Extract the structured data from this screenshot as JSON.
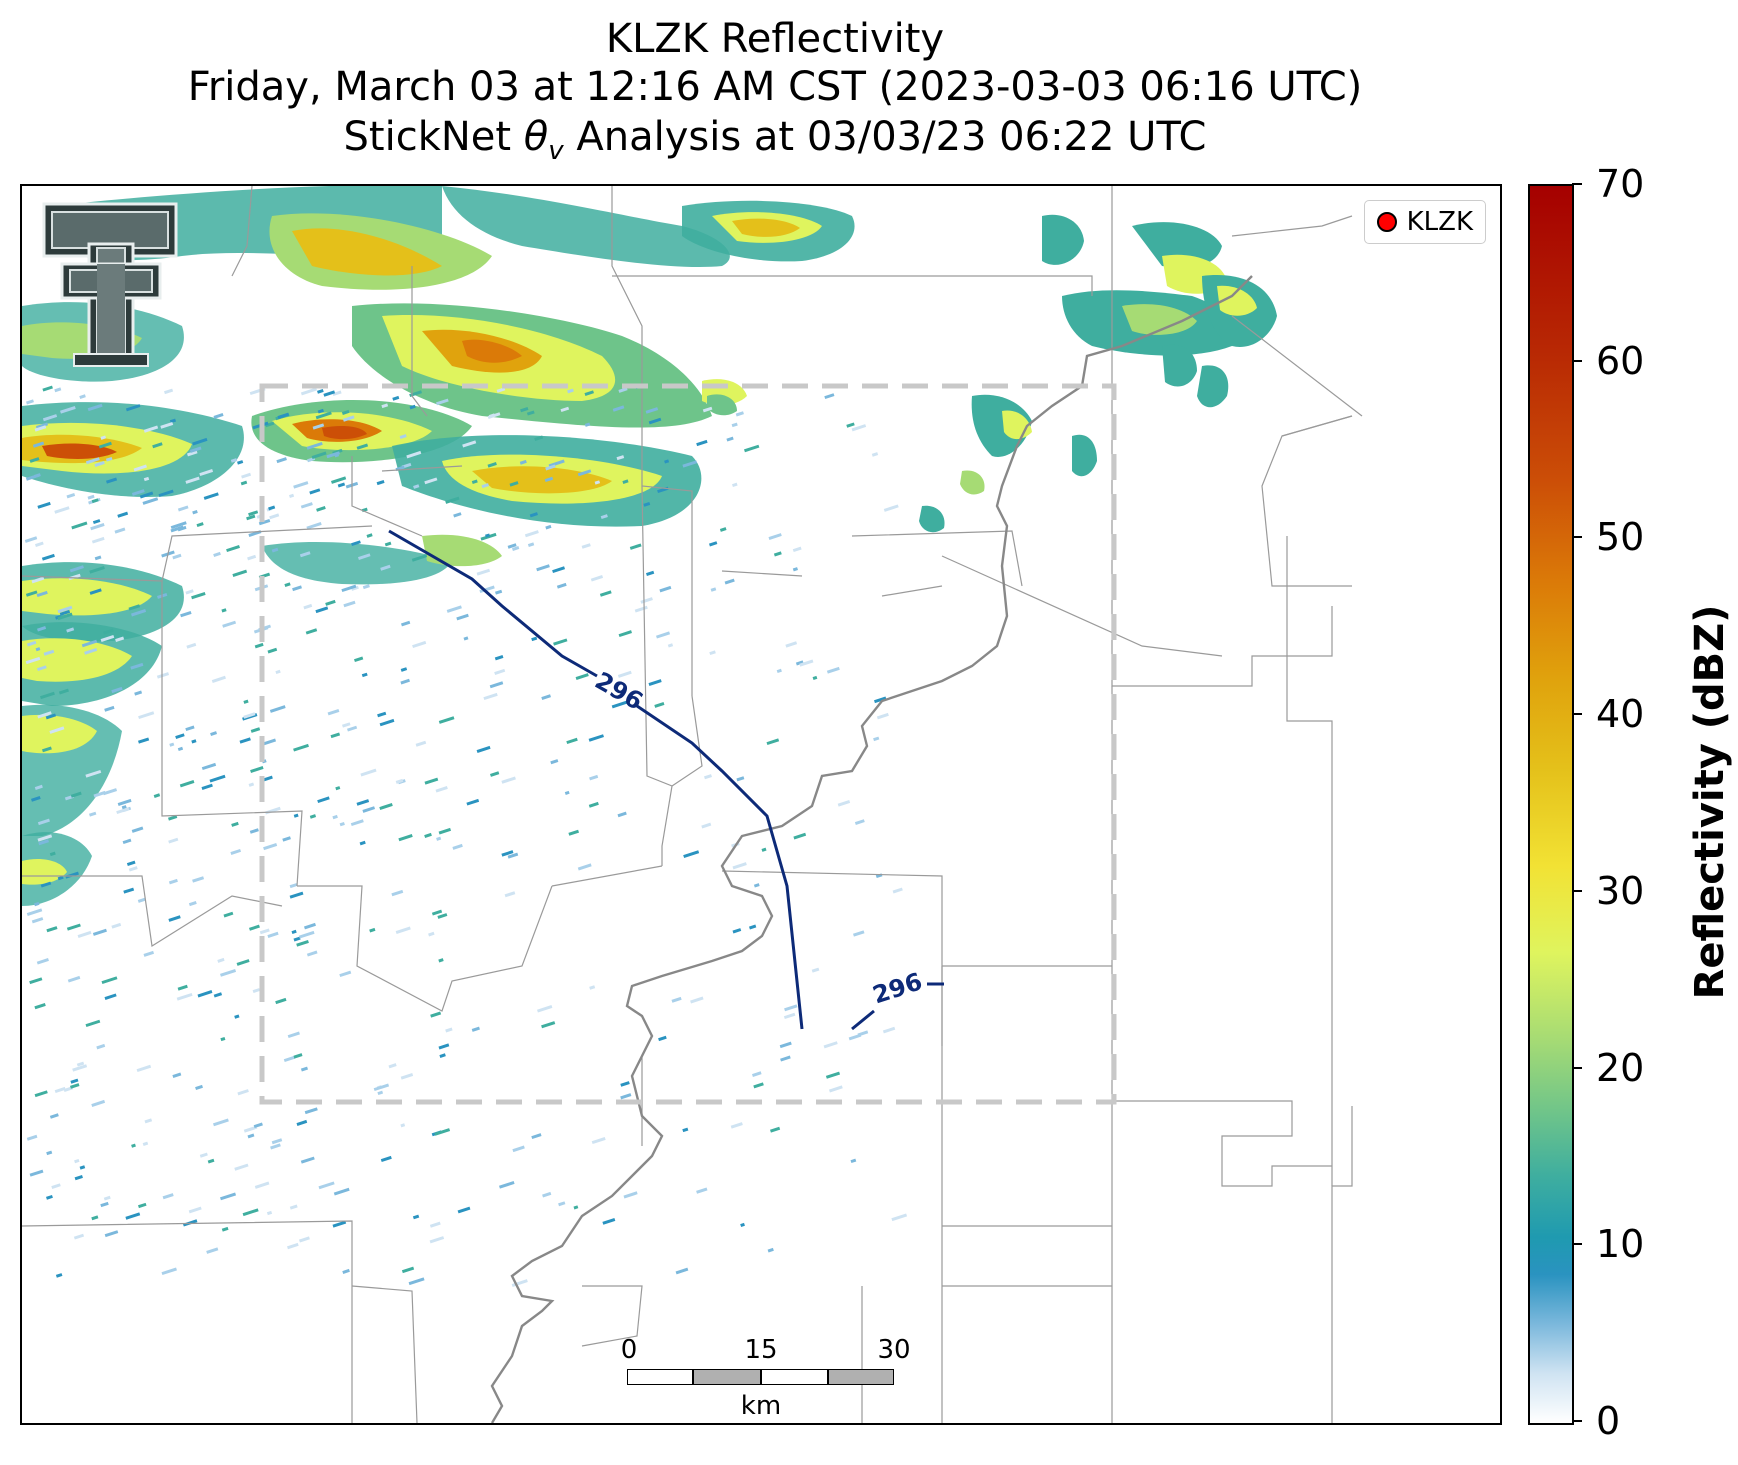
{
  "title": {
    "line1": "KLZK Reflectivity",
    "line2": "Friday, March 03 at 12:16 AM CST (2023-03-03 06:16 UTC)",
    "line3_prefix": "StickNet ",
    "line3_symbol": "θ",
    "line3_subscript": "v",
    "line3_suffix": " Analysis at 03/03/23 06:22 UTC"
  },
  "legend": {
    "label": "KLZK",
    "marker_color": "#ff0000"
  },
  "contours": [
    {
      "label": "296",
      "color": "#0d2a78"
    },
    {
      "label": "296",
      "color": "#0d2a78"
    }
  ],
  "colorbar": {
    "title": "Reflectivity (dBZ)",
    "min": 0,
    "max": 70,
    "ticks": [
      "0",
      "10",
      "20",
      "30",
      "40",
      "50",
      "60",
      "70"
    ],
    "colors": [
      "#ffffff",
      "#2a93c0",
      "#6ec48a",
      "#dff45e",
      "#e4c01a",
      "#db7a08",
      "#cc4f07",
      "#a50000"
    ]
  },
  "scalebar": {
    "ticks": [
      "0",
      "15",
      "30"
    ],
    "unit": "km"
  },
  "analysis_box": {
    "style": "dashed",
    "color": "#c8c8c8"
  },
  "logo": {
    "name": "texas-tech-double-t-logo"
  }
}
